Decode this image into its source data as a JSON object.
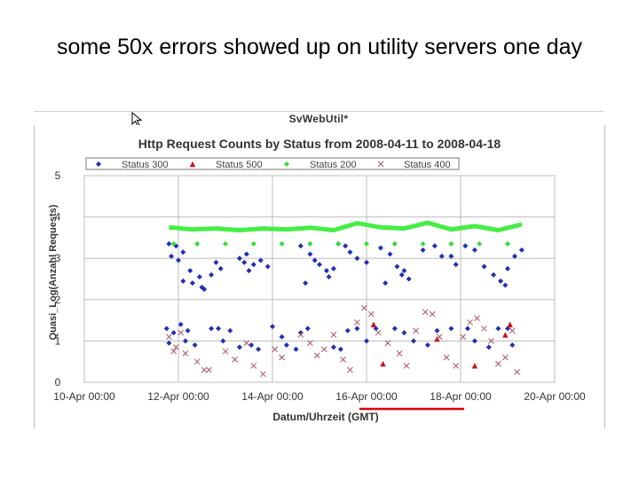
{
  "slide": {
    "title": "some 50x errors showed up on utility servers one day"
  },
  "window": {
    "title": "SvWebUtil*"
  },
  "chart_data": {
    "type": "scatter",
    "title": "Http Request Counts by Status from 2008-04-11 to 2008-04-18",
    "xlabel": "Datum/Uhrzeit (GMT)",
    "ylabel": "Quasi_Log(Anzahl Requests)",
    "x_ticks": [
      "10-Apr 00:00",
      "12-Apr 00:00",
      "14-Apr 00:00",
      "16-Apr 00:00",
      "18-Apr 00:00",
      "20-Apr 00:00"
    ],
    "y_ticks": [
      "0",
      "1",
      "2",
      "3",
      "4",
      "5"
    ],
    "xlim_days": [
      10,
      20
    ],
    "ylim": [
      0,
      5
    ],
    "grid": true,
    "legend_position": "top",
    "series": [
      {
        "name": "Status 300",
        "marker": "diamond",
        "color": "#1f2fb5",
        "points": [
          [
            11.8,
            3.35
          ],
          [
            11.95,
            3.3
          ],
          [
            12.1,
            3.15
          ],
          [
            11.85,
            3.05
          ],
          [
            12.0,
            2.95
          ],
          [
            12.25,
            2.7
          ],
          [
            12.45,
            2.55
          ],
          [
            12.1,
            2.45
          ],
          [
            12.3,
            2.4
          ],
          [
            12.55,
            2.25
          ],
          [
            12.8,
            2.9
          ],
          [
            12.9,
            2.75
          ],
          [
            12.7,
            2.6
          ],
          [
            12.5,
            2.3
          ],
          [
            13.3,
            3.0
          ],
          [
            13.45,
            3.1
          ],
          [
            13.6,
            2.85
          ],
          [
            13.75,
            2.95
          ],
          [
            13.9,
            2.8
          ],
          [
            13.5,
            2.7
          ],
          [
            13.4,
            2.9
          ],
          [
            14.6,
            3.3
          ],
          [
            14.8,
            3.1
          ],
          [
            14.9,
            2.95
          ],
          [
            15.0,
            2.85
          ],
          [
            15.15,
            2.7
          ],
          [
            15.2,
            2.55
          ],
          [
            14.7,
            2.4
          ],
          [
            15.4,
            3.35
          ],
          [
            15.55,
            3.3
          ],
          [
            15.65,
            3.15
          ],
          [
            15.8,
            3.0
          ],
          [
            16.0,
            2.9
          ],
          [
            15.3,
            2.75
          ],
          [
            16.3,
            3.25
          ],
          [
            16.5,
            3.1
          ],
          [
            16.65,
            2.8
          ],
          [
            16.75,
            2.6
          ],
          [
            16.9,
            2.5
          ],
          [
            16.4,
            2.4
          ],
          [
            16.8,
            2.7
          ],
          [
            17.2,
            3.2
          ],
          [
            17.45,
            3.3
          ],
          [
            17.6,
            3.05
          ],
          [
            17.8,
            3.05
          ],
          [
            17.9,
            2.85
          ],
          [
            18.1,
            3.3
          ],
          [
            18.3,
            3.2
          ],
          [
            18.5,
            2.8
          ],
          [
            18.7,
            2.6
          ],
          [
            18.85,
            2.45
          ],
          [
            19.0,
            2.75
          ],
          [
            19.15,
            3.05
          ],
          [
            19.3,
            3.2
          ],
          [
            18.95,
            2.35
          ],
          [
            11.75,
            1.3
          ],
          [
            11.9,
            1.2
          ],
          [
            12.05,
            1.4
          ],
          [
            12.15,
            1.0
          ],
          [
            12.2,
            1.25
          ],
          [
            12.35,
            0.9
          ],
          [
            11.8,
            0.95
          ],
          [
            12.7,
            1.3
          ],
          [
            12.85,
            1.3
          ],
          [
            12.95,
            1.0
          ],
          [
            13.1,
            1.25
          ],
          [
            13.3,
            0.85
          ],
          [
            13.55,
            0.9
          ],
          [
            13.7,
            0.8
          ],
          [
            14.0,
            1.35
          ],
          [
            14.2,
            1.1
          ],
          [
            14.3,
            0.9
          ],
          [
            14.5,
            0.8
          ],
          [
            14.6,
            1.2
          ],
          [
            14.75,
            1.3
          ],
          [
            15.3,
            0.85
          ],
          [
            15.45,
            0.8
          ],
          [
            15.6,
            1.25
          ],
          [
            15.8,
            1.3
          ],
          [
            16.0,
            1.0
          ],
          [
            16.2,
            1.3
          ],
          [
            16.6,
            1.3
          ],
          [
            16.8,
            1.2
          ],
          [
            17.0,
            1.0
          ],
          [
            17.3,
            0.9
          ],
          [
            17.5,
            1.25
          ],
          [
            17.8,
            1.3
          ],
          [
            18.15,
            1.3
          ],
          [
            18.3,
            1.0
          ],
          [
            18.6,
            0.85
          ],
          [
            18.8,
            1.3
          ],
          [
            19.0,
            1.3
          ],
          [
            19.1,
            0.9
          ]
        ]
      },
      {
        "name": "Status 500",
        "marker": "triangle",
        "color": "#cc1111",
        "points": [
          [
            16.15,
            1.4
          ],
          [
            16.35,
            0.45
          ],
          [
            17.5,
            1.05
          ],
          [
            18.3,
            0.4
          ],
          [
            18.95,
            1.15
          ],
          [
            19.05,
            1.4
          ]
        ]
      },
      {
        "name": "Status 200",
        "marker": "diamond",
        "color": "#33dd33",
        "points": [
          [
            11.9,
            3.35
          ],
          [
            12.4,
            3.35
          ],
          [
            13.0,
            3.35
          ],
          [
            13.6,
            3.35
          ],
          [
            14.2,
            3.35
          ],
          [
            14.8,
            3.35
          ],
          [
            15.4,
            3.35
          ],
          [
            16.0,
            3.35
          ],
          [
            16.6,
            3.35
          ],
          [
            17.2,
            3.35
          ],
          [
            17.8,
            3.35
          ],
          [
            18.4,
            3.35
          ],
          [
            19.0,
            3.35
          ]
        ]
      },
      {
        "name": "Status 400",
        "marker": "cross",
        "color": "#aa5566",
        "points": [
          [
            11.8,
            1.1
          ],
          [
            11.95,
            0.85
          ],
          [
            12.05,
            1.2
          ],
          [
            12.15,
            0.7
          ],
          [
            12.4,
            0.5
          ],
          [
            12.55,
            0.3
          ],
          [
            12.65,
            0.3
          ],
          [
            11.9,
            0.75
          ],
          [
            13.0,
            0.75
          ],
          [
            13.2,
            0.55
          ],
          [
            13.45,
            0.95
          ],
          [
            13.6,
            0.4
          ],
          [
            13.8,
            0.2
          ],
          [
            14.05,
            0.8
          ],
          [
            14.2,
            0.6
          ],
          [
            14.6,
            1.15
          ],
          [
            14.8,
            0.95
          ],
          [
            14.95,
            0.65
          ],
          [
            15.1,
            0.8
          ],
          [
            15.3,
            1.15
          ],
          [
            15.5,
            0.55
          ],
          [
            15.65,
            0.3
          ],
          [
            15.8,
            1.45
          ],
          [
            15.95,
            1.8
          ],
          [
            16.1,
            1.65
          ],
          [
            16.25,
            1.2
          ],
          [
            16.45,
            0.95
          ],
          [
            16.7,
            0.7
          ],
          [
            16.85,
            0.4
          ],
          [
            17.05,
            1.25
          ],
          [
            17.25,
            1.7
          ],
          [
            17.4,
            1.65
          ],
          [
            17.55,
            1.1
          ],
          [
            17.7,
            0.6
          ],
          [
            17.9,
            0.4
          ],
          [
            18.05,
            1.1
          ],
          [
            18.2,
            1.45
          ],
          [
            18.35,
            1.55
          ],
          [
            18.5,
            1.3
          ],
          [
            18.65,
            1.0
          ],
          [
            18.8,
            0.45
          ],
          [
            18.95,
            0.6
          ],
          [
            19.1,
            1.25
          ],
          [
            19.2,
            0.25
          ]
        ]
      }
    ],
    "series_line": {
      "name": "Status 200",
      "color": "#44ee44",
      "points": [
        [
          11.8,
          3.75
        ],
        [
          12.3,
          3.7
        ],
        [
          12.8,
          3.72
        ],
        [
          13.3,
          3.68
        ],
        [
          13.8,
          3.72
        ],
        [
          14.3,
          3.7
        ],
        [
          14.8,
          3.74
        ],
        [
          15.3,
          3.68
        ],
        [
          15.8,
          3.85
        ],
        [
          16.3,
          3.75
        ],
        [
          16.8,
          3.72
        ],
        [
          17.3,
          3.86
        ],
        [
          17.8,
          3.7
        ],
        [
          18.3,
          3.78
        ],
        [
          18.8,
          3.68
        ],
        [
          19.3,
          3.82
        ]
      ]
    },
    "annotation": {
      "type": "underline",
      "color": "#dd0000",
      "x_range": [
        16.0,
        18.0
      ],
      "note": "red underline below x-axis"
    },
    "colors": {
      "grid": "#bdbdbd",
      "axis": "#444444"
    }
  }
}
